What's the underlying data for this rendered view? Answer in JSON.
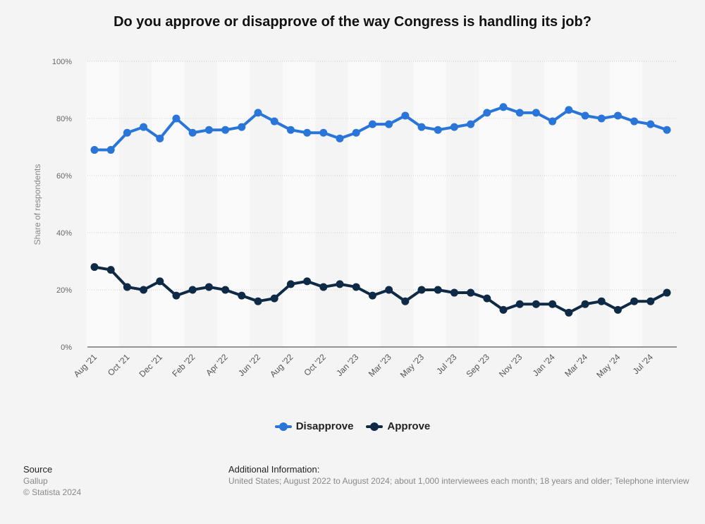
{
  "chart_data": {
    "type": "line",
    "title": "Do you approve or disapprove of the way Congress is handling its job?",
    "ylabel": "Share of respondents",
    "ylim": [
      0,
      100
    ],
    "yticks": [
      "0%",
      "20%",
      "40%",
      "60%",
      "80%",
      "100%"
    ],
    "xtick_labels": [
      "Aug '21",
      "Oct '21",
      "Dec '21",
      "Feb '22",
      "Apr '22",
      "Jun '22",
      "Aug '22",
      "Oct '22",
      "Jan '23",
      "Mar '23",
      "May '23",
      "Jul '23",
      "Sep '23",
      "Nov '23",
      "Jan '24",
      "Mar '24",
      "May '24",
      "Jul '24"
    ],
    "grid": true,
    "legend_position": "bottom",
    "series": [
      {
        "name": "Disapprove",
        "color": "#2a75d9",
        "values": [
          69,
          69,
          75,
          77,
          73,
          80,
          75,
          76,
          76,
          77,
          82,
          79,
          76,
          75,
          75,
          73,
          75,
          78,
          78,
          81,
          77,
          76,
          77,
          78,
          82,
          84,
          82,
          82,
          79,
          83,
          81,
          80,
          81,
          79,
          78,
          76
        ]
      },
      {
        "name": "Approve",
        "color": "#0e2a47",
        "values": [
          28,
          27,
          21,
          20,
          23,
          18,
          20,
          21,
          20,
          18,
          16,
          17,
          22,
          23,
          21,
          22,
          21,
          18,
          20,
          16,
          20,
          20,
          19,
          19,
          17,
          13,
          15,
          15,
          15,
          12,
          15,
          16,
          13,
          16,
          16,
          19
        ]
      }
    ]
  },
  "footer": {
    "source_heading": "Source",
    "source_name": "Gallup",
    "copyright": "© Statista 2024",
    "info_heading": "Additional Information:",
    "info_text": "United States; August 2022 to August 2024; about 1,000 interviewees each month; 18 years and older; Telephone interview"
  }
}
